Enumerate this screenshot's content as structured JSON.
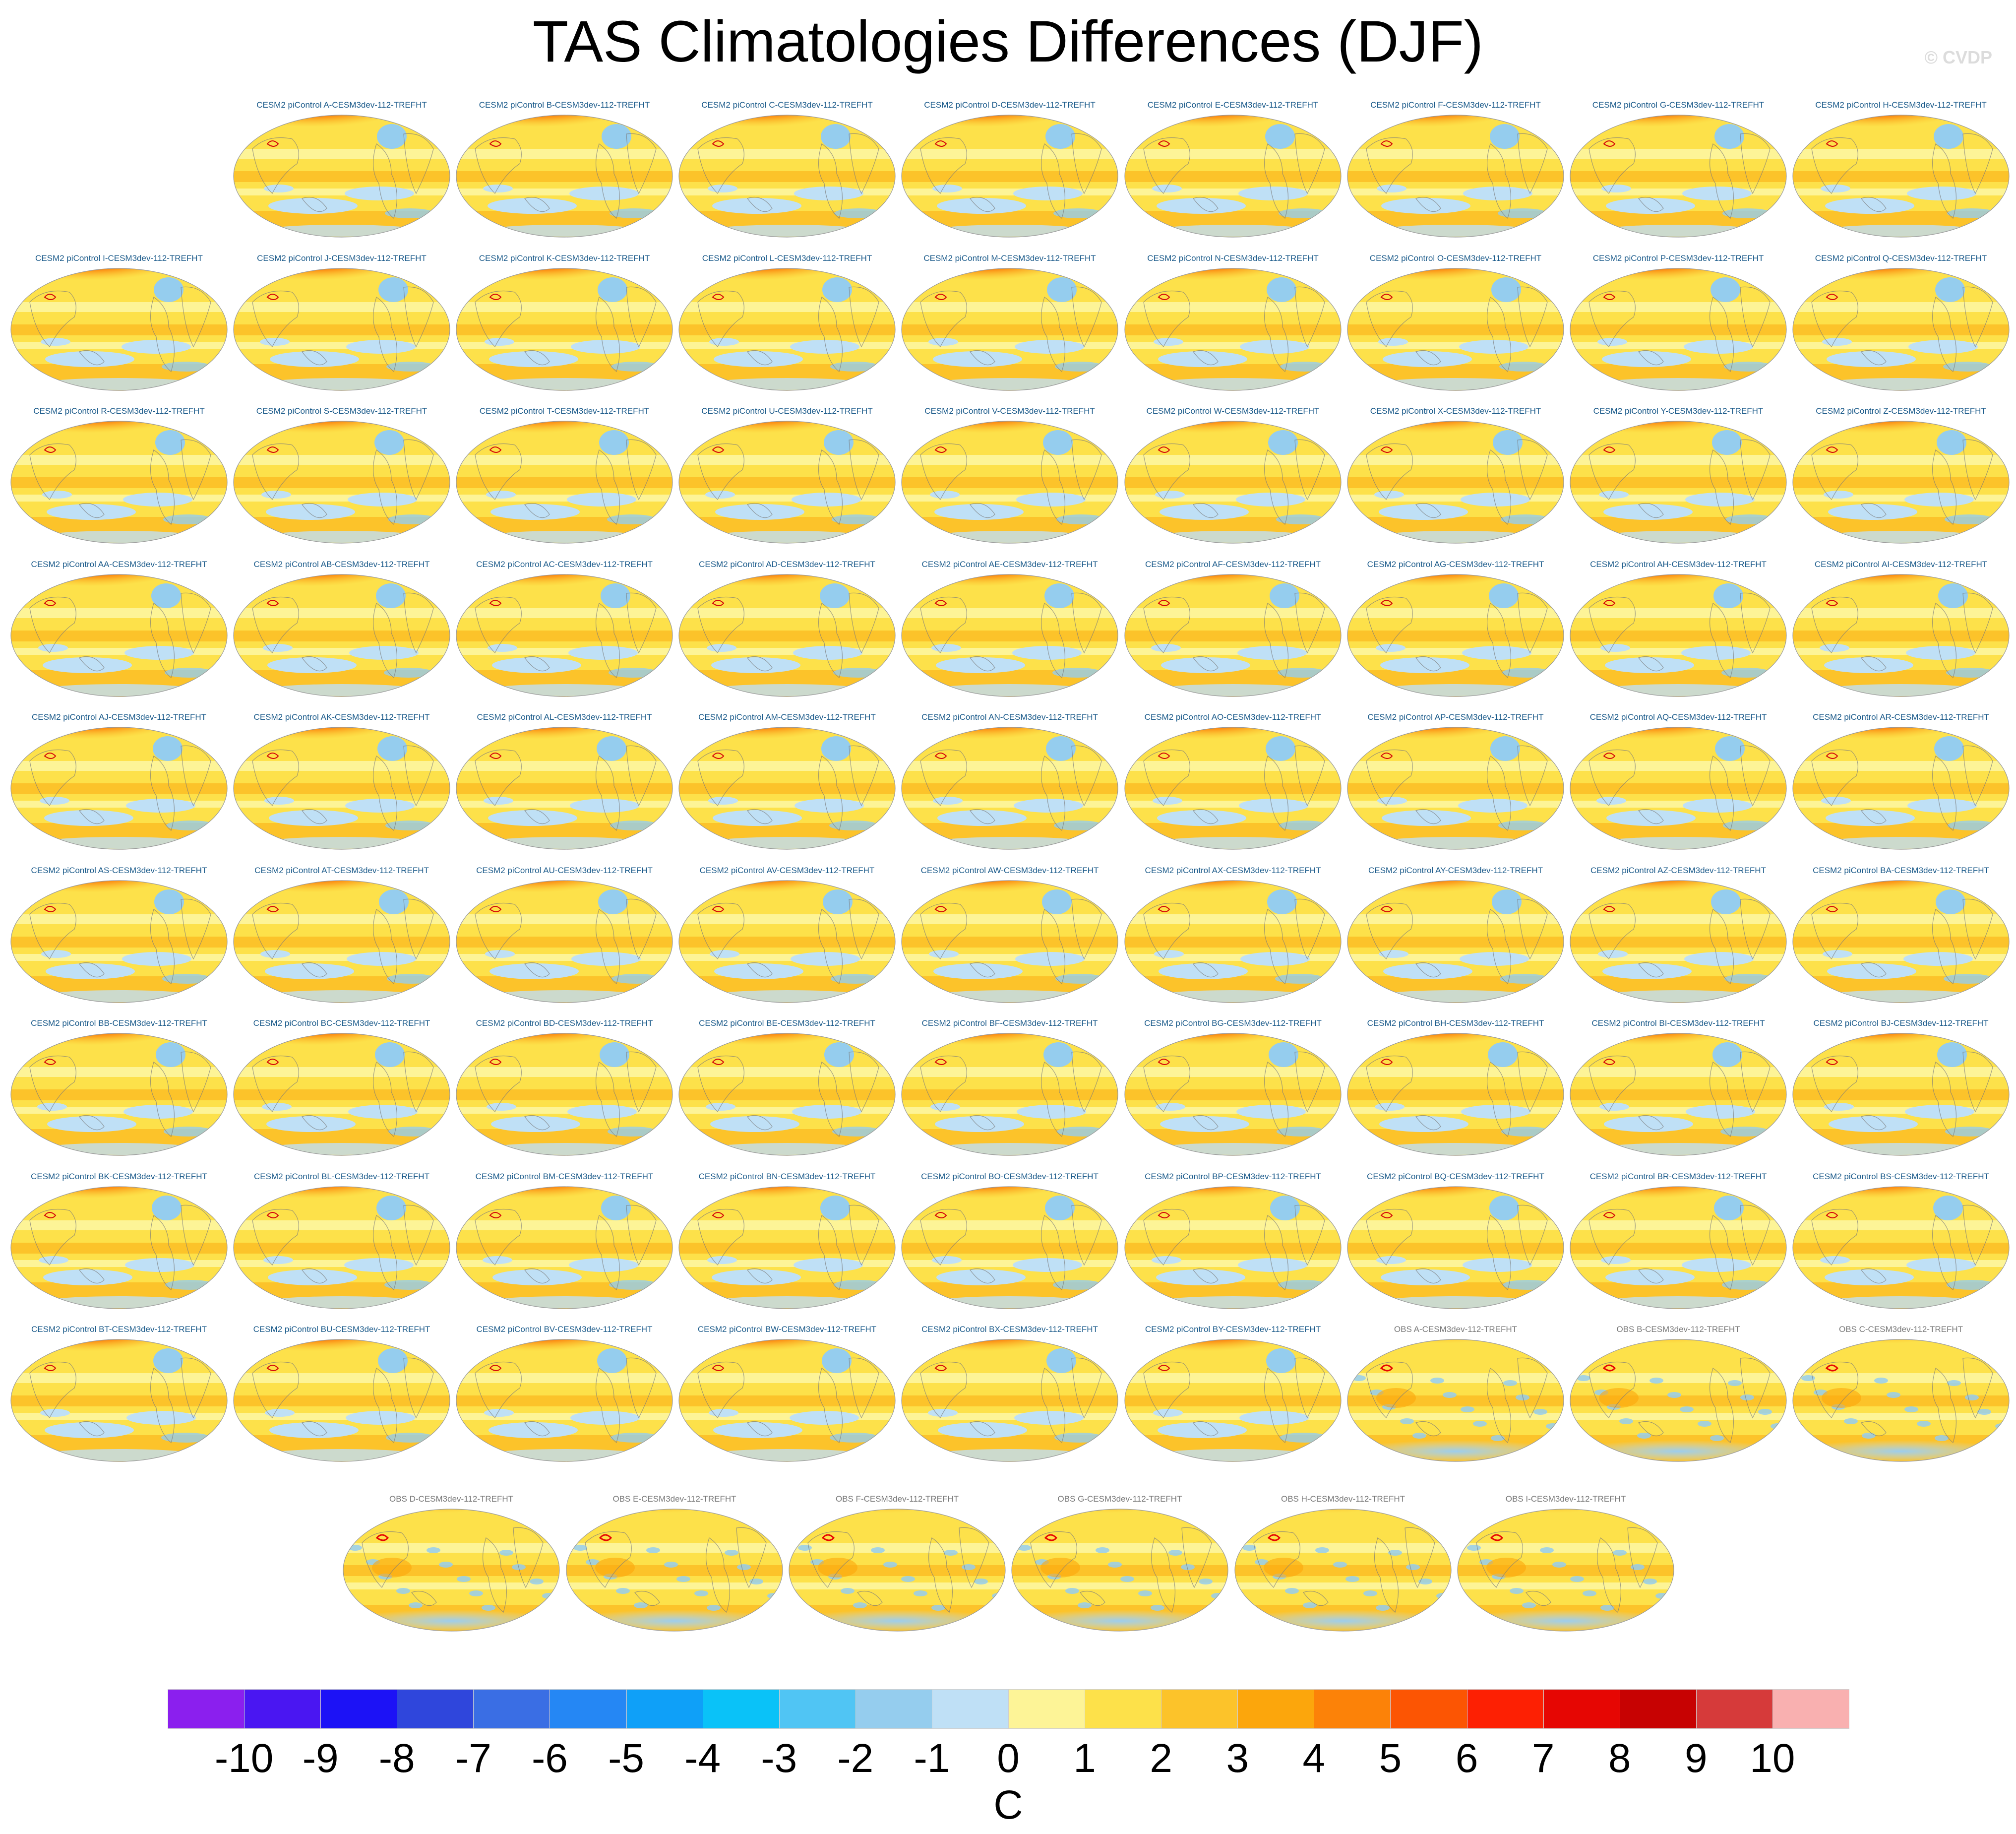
{
  "title": "TAS Climatologies Differences (DJF)",
  "watermark": "© CVDP",
  "chart_data": {
    "type": "heatmap",
    "description_kind": "panel grid of global DJF surface air temperature climatology difference maps",
    "variable": "TAS",
    "season": "DJF",
    "units": "C",
    "colorbar": {
      "levels": [
        -10,
        -9,
        -8,
        -7,
        -6,
        -5,
        -4,
        -3,
        -2,
        -1,
        0,
        1,
        2,
        3,
        4,
        5,
        6,
        7,
        8,
        9,
        10
      ],
      "labels": [
        "-10",
        "-9",
        "-8",
        "-7",
        "-6",
        "-5",
        "-4",
        "-3",
        "-2",
        "-1",
        "0",
        "1",
        "2",
        "3",
        "4",
        "5",
        "6",
        "7",
        "8",
        "9",
        "10"
      ],
      "colors": [
        "#8b1fee",
        "#4a16f2",
        "#1c12f6",
        "#2f46dc",
        "#3a6ee4",
        "#2587f4",
        "#0fa0f8",
        "#0ac2f8",
        "#50c5f4",
        "#95cdee",
        "#bfe0f6",
        "#fdf497",
        "#fde14a",
        "#fcc32a",
        "#fca60c",
        "#fc8208",
        "#fc5503",
        "#fd2003",
        "#e60603",
        "#c70202",
        "#d63a3a",
        "#f9b0b0"
      ]
    },
    "panel_rows": [
      {
        "kind": "model",
        "labels": [
          "CESM2 piControl A-CESM3dev-112-TREFHT",
          "CESM2 piControl B-CESM3dev-112-TREFHT",
          "CESM2 piControl C-CESM3dev-112-TREFHT",
          "CESM2 piControl D-CESM3dev-112-TREFHT",
          "CESM2 piControl E-CESM3dev-112-TREFHT",
          "CESM2 piControl F-CESM3dev-112-TREFHT",
          "CESM2 piControl G-CESM3dev-112-TREFHT",
          "CESM2 piControl H-CESM3dev-112-TREFHT"
        ]
      },
      {
        "kind": "model",
        "labels": [
          "CESM2 piControl I-CESM3dev-112-TREFHT",
          "CESM2 piControl J-CESM3dev-112-TREFHT",
          "CESM2 piControl K-CESM3dev-112-TREFHT",
          "CESM2 piControl L-CESM3dev-112-TREFHT",
          "CESM2 piControl M-CESM3dev-112-TREFHT",
          "CESM2 piControl N-CESM3dev-112-TREFHT",
          "CESM2 piControl O-CESM3dev-112-TREFHT",
          "CESM2 piControl P-CESM3dev-112-TREFHT",
          "CESM2 piControl Q-CESM3dev-112-TREFHT"
        ]
      },
      {
        "kind": "model",
        "labels": [
          "CESM2 piControl R-CESM3dev-112-TREFHT",
          "CESM2 piControl S-CESM3dev-112-TREFHT",
          "CESM2 piControl T-CESM3dev-112-TREFHT",
          "CESM2 piControl U-CESM3dev-112-TREFHT",
          "CESM2 piControl V-CESM3dev-112-TREFHT",
          "CESM2 piControl W-CESM3dev-112-TREFHT",
          "CESM2 piControl X-CESM3dev-112-TREFHT",
          "CESM2 piControl Y-CESM3dev-112-TREFHT",
          "CESM2 piControl Z-CESM3dev-112-TREFHT"
        ]
      },
      {
        "kind": "model",
        "labels": [
          "CESM2 piControl AA-CESM3dev-112-TREFHT",
          "CESM2 piControl AB-CESM3dev-112-TREFHT",
          "CESM2 piControl AC-CESM3dev-112-TREFHT",
          "CESM2 piControl AD-CESM3dev-112-TREFHT",
          "CESM2 piControl AE-CESM3dev-112-TREFHT",
          "CESM2 piControl AF-CESM3dev-112-TREFHT",
          "CESM2 piControl AG-CESM3dev-112-TREFHT",
          "CESM2 piControl AH-CESM3dev-112-TREFHT",
          "CESM2 piControl AI-CESM3dev-112-TREFHT"
        ]
      },
      {
        "kind": "model",
        "labels": [
          "CESM2 piControl AJ-CESM3dev-112-TREFHT",
          "CESM2 piControl AK-CESM3dev-112-TREFHT",
          "CESM2 piControl AL-CESM3dev-112-TREFHT",
          "CESM2 piControl AM-CESM3dev-112-TREFHT",
          "CESM2 piControl AN-CESM3dev-112-TREFHT",
          "CESM2 piControl AO-CESM3dev-112-TREFHT",
          "CESM2 piControl AP-CESM3dev-112-TREFHT",
          "CESM2 piControl AQ-CESM3dev-112-TREFHT",
          "CESM2 piControl AR-CESM3dev-112-TREFHT"
        ]
      },
      {
        "kind": "model",
        "labels": [
          "CESM2 piControl AS-CESM3dev-112-TREFHT",
          "CESM2 piControl AT-CESM3dev-112-TREFHT",
          "CESM2 piControl AU-CESM3dev-112-TREFHT",
          "CESM2 piControl AV-CESM3dev-112-TREFHT",
          "CESM2 piControl AW-CESM3dev-112-TREFHT",
          "CESM2 piControl AX-CESM3dev-112-TREFHT",
          "CESM2 piControl AY-CESM3dev-112-TREFHT",
          "CESM2 piControl AZ-CESM3dev-112-TREFHT",
          "CESM2 piControl BA-CESM3dev-112-TREFHT"
        ]
      },
      {
        "kind": "model",
        "labels": [
          "CESM2 piControl BB-CESM3dev-112-TREFHT",
          "CESM2 piControl BC-CESM3dev-112-TREFHT",
          "CESM2 piControl BD-CESM3dev-112-TREFHT",
          "CESM2 piControl BE-CESM3dev-112-TREFHT",
          "CESM2 piControl BF-CESM3dev-112-TREFHT",
          "CESM2 piControl BG-CESM3dev-112-TREFHT",
          "CESM2 piControl BH-CESM3dev-112-TREFHT",
          "CESM2 piControl BI-CESM3dev-112-TREFHT",
          "CESM2 piControl BJ-CESM3dev-112-TREFHT"
        ]
      },
      {
        "kind": "model",
        "labels": [
          "CESM2 piControl BK-CESM3dev-112-TREFHT",
          "CESM2 piControl BL-CESM3dev-112-TREFHT",
          "CESM2 piControl BM-CESM3dev-112-TREFHT",
          "CESM2 piControl BN-CESM3dev-112-TREFHT",
          "CESM2 piControl BO-CESM3dev-112-TREFHT",
          "CESM2 piControl BP-CESM3dev-112-TREFHT",
          "CESM2 piControl BQ-CESM3dev-112-TREFHT",
          "CESM2 piControl BR-CESM3dev-112-TREFHT",
          "CESM2 piControl BS-CESM3dev-112-TREFHT"
        ]
      },
      {
        "kind": "mixed",
        "labels": [
          "CESM2 piControl BT-CESM3dev-112-TREFHT",
          "CESM2 piControl BU-CESM3dev-112-TREFHT",
          "CESM2 piControl BV-CESM3dev-112-TREFHT",
          "CESM2 piControl BW-CESM3dev-112-TREFHT",
          "CESM2 piControl BX-CESM3dev-112-TREFHT",
          "CESM2 piControl BY-CESM3dev-112-TREFHT",
          "OBS A-CESM3dev-112-TREFHT",
          "OBS B-CESM3dev-112-TREFHT",
          "OBS C-CESM3dev-112-TREFHT"
        ]
      },
      {
        "kind": "obs",
        "labels": [
          "OBS D-CESM3dev-112-TREFHT",
          "OBS E-CESM3dev-112-TREFHT",
          "OBS F-CESM3dev-112-TREFHT",
          "OBS G-CESM3dev-112-TREFHT",
          "OBS H-CESM3dev-112-TREFHT",
          "OBS I-CESM3dev-112-TREFHT"
        ]
      }
    ]
  }
}
